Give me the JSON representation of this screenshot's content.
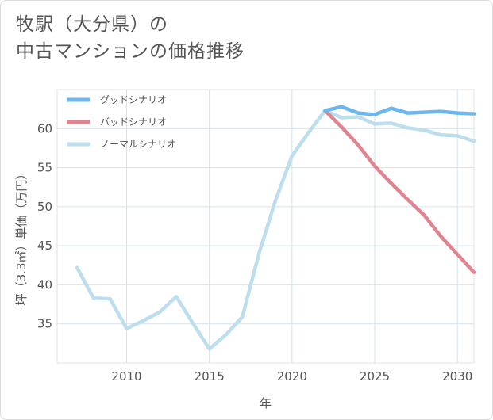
{
  "title_lines": [
    "牧駅（大分県）の",
    "中古マンションの価格推移"
  ],
  "chart_data": {
    "type": "line",
    "title": "牧駅（大分県）の中古マンションの価格推移",
    "xlabel": "年",
    "ylabel": "坪（3.3㎡）単価（万円）",
    "xlim": [
      2005.8,
      2031
    ],
    "ylim": [
      30,
      65
    ],
    "xticks": [
      2010,
      2015,
      2020,
      2025,
      2030
    ],
    "yticks": [
      35,
      40,
      45,
      50,
      55,
      60
    ],
    "grid": true,
    "legend_position": "top-left",
    "series": [
      {
        "name": "グッドシナリオ",
        "color": "#6cb7ef",
        "x": [
          2022,
          2023,
          2024,
          2025,
          2026,
          2027,
          2028,
          2029,
          2030,
          2031
        ],
        "y": [
          62.3,
          62.8,
          62.0,
          61.8,
          62.6,
          62.0,
          62.1,
          62.2,
          62.0,
          61.9
        ]
      },
      {
        "name": "バッドシナリオ",
        "color": "#e0858f",
        "x": [
          2022,
          2023,
          2024,
          2025,
          2026,
          2027,
          2028,
          2029,
          2030,
          2031
        ],
        "y": [
          62.3,
          60.2,
          57.9,
          55.2,
          53.0,
          50.9,
          48.9,
          46.2,
          43.9,
          41.6
        ]
      },
      {
        "name": "ノーマルシナリオ",
        "color": "#bddeec",
        "x": [
          2007,
          2008,
          2009,
          2010,
          2011,
          2012,
          2013,
          2014,
          2015,
          2016,
          2017,
          2018,
          2019,
          2020,
          2021,
          2022,
          2023,
          2024,
          2025,
          2026,
          2027,
          2028,
          2029,
          2030,
          2031
        ],
        "y": [
          42.2,
          38.3,
          38.2,
          34.4,
          35.4,
          36.5,
          38.5,
          35.1,
          31.8,
          33.6,
          35.9,
          44.0,
          50.8,
          56.5,
          59.5,
          62.3,
          61.4,
          61.5,
          60.6,
          60.7,
          60.1,
          59.8,
          59.2,
          59.1,
          58.4
        ]
      }
    ]
  }
}
